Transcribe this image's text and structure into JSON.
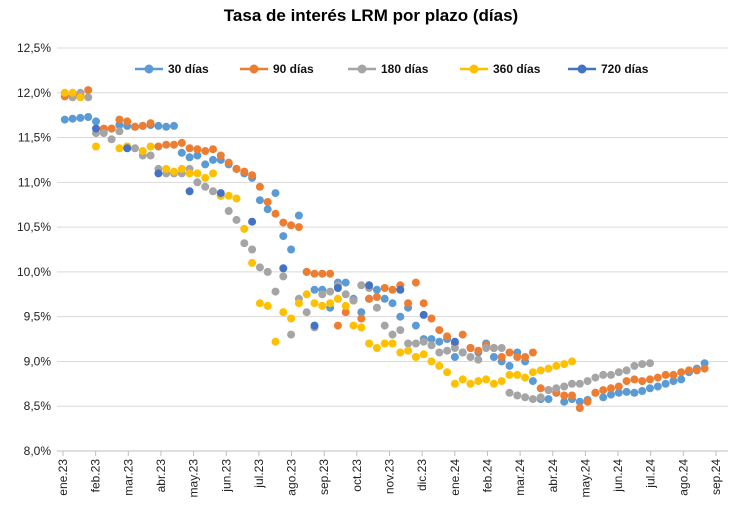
{
  "chart_data": {
    "type": "scatter",
    "title": "Tasa de interés LRM por plazo (días)",
    "xlabel": "",
    "ylabel": "",
    "ylim": [
      8.0,
      12.5
    ],
    "y_ticks": [
      "8,0%",
      "8,5%",
      "9,0%",
      "9,5%",
      "10,0%",
      "10,5%",
      "11,0%",
      "11,5%",
      "12,0%",
      "12,5%"
    ],
    "x_ticks": [
      "ene.23",
      "feb.23",
      "mar.23",
      "abr.23",
      "may.23",
      "jun.23",
      "jul.23",
      "ago.23",
      "sep.23",
      "oct.23",
      "nov.23",
      "dic.23",
      "ene.24",
      "feb.24",
      "mar.24",
      "abr.24",
      "may.24",
      "jun.24",
      "jul.24",
      "ago.24",
      "sep.24"
    ],
    "x_unit": "weeks since ene.23",
    "grid": "horizontal",
    "legend_position": "top",
    "series": [
      {
        "name": "30 días",
        "color": "#5B9BD5",
        "points": [
          [
            0,
            11.7
          ],
          [
            1,
            11.71
          ],
          [
            2,
            11.72
          ],
          [
            3,
            11.73
          ],
          [
            4,
            11.68
          ],
          [
            5,
            11.58
          ],
          [
            6,
            11.6
          ],
          [
            7,
            11.64
          ],
          [
            8,
            11.63
          ],
          [
            9,
            11.62
          ],
          [
            10,
            11.63
          ],
          [
            11,
            11.64
          ],
          [
            12,
            11.63
          ],
          [
            13,
            11.62
          ],
          [
            14,
            11.63
          ],
          [
            15,
            11.33
          ],
          [
            16,
            11.28
          ],
          [
            17,
            11.3
          ],
          [
            18,
            11.2
          ],
          [
            19,
            11.25
          ],
          [
            20,
            11.25
          ],
          [
            21,
            11.2
          ],
          [
            22,
            11.15
          ],
          [
            23,
            11.1
          ],
          [
            24,
            11.05
          ],
          [
            25,
            10.8
          ],
          [
            26,
            10.7
          ],
          [
            27,
            10.88
          ],
          [
            28,
            10.4
          ],
          [
            29,
            10.25
          ],
          [
            30,
            10.63
          ],
          [
            31,
            10.0
          ],
          [
            32,
            9.8
          ],
          [
            33,
            9.8
          ],
          [
            34,
            9.6
          ],
          [
            35,
            9.88
          ],
          [
            36,
            9.88
          ],
          [
            37,
            9.7
          ],
          [
            38,
            9.55
          ],
          [
            39,
            9.7
          ],
          [
            40,
            9.8
          ],
          [
            41,
            9.7
          ],
          [
            42,
            9.65
          ],
          [
            43,
            9.5
          ],
          [
            44,
            9.6
          ],
          [
            45,
            9.4
          ],
          [
            46,
            9.25
          ],
          [
            47,
            9.25
          ],
          [
            48,
            9.22
          ],
          [
            49,
            9.25
          ],
          [
            50,
            9.05
          ],
          [
            51,
            9.1
          ],
          [
            52,
            9.15
          ],
          [
            53,
            9.1
          ],
          [
            54,
            9.2
          ],
          [
            55,
            9.05
          ],
          [
            56,
            9.0
          ],
          [
            57,
            8.95
          ],
          [
            58,
            9.1
          ],
          [
            59,
            9.0
          ],
          [
            60,
            8.78
          ],
          [
            61,
            8.58
          ],
          [
            62,
            8.58
          ],
          [
            63,
            8.65
          ],
          [
            64,
            8.55
          ],
          [
            65,
            8.58
          ],
          [
            66,
            8.55
          ],
          [
            67,
            8.57
          ],
          [
            68,
            8.65
          ],
          [
            69,
            8.6
          ],
          [
            70,
            8.63
          ],
          [
            71,
            8.65
          ],
          [
            72,
            8.66
          ],
          [
            73,
            8.65
          ],
          [
            74,
            8.67
          ],
          [
            75,
            8.7
          ],
          [
            76,
            8.72
          ],
          [
            77,
            8.75
          ],
          [
            78,
            8.78
          ],
          [
            79,
            8.8
          ],
          [
            80,
            8.88
          ],
          [
            81,
            8.92
          ],
          [
            82,
            8.98
          ]
        ]
      },
      {
        "name": "90 días",
        "color": "#ED7D31",
        "points": [
          [
            0,
            11.96
          ],
          [
            1,
            11.97
          ],
          [
            2,
            11.98
          ],
          [
            3,
            12.03
          ],
          [
            5,
            11.6
          ],
          [
            6,
            11.6
          ],
          [
            7,
            11.7
          ],
          [
            8,
            11.68
          ],
          [
            9,
            11.62
          ],
          [
            10,
            11.63
          ],
          [
            11,
            11.66
          ],
          [
            12,
            11.4
          ],
          [
            13,
            11.42
          ],
          [
            14,
            11.42
          ],
          [
            15,
            11.44
          ],
          [
            16,
            11.38
          ],
          [
            17,
            11.37
          ],
          [
            18,
            11.35
          ],
          [
            19,
            11.37
          ],
          [
            20,
            11.3
          ],
          [
            21,
            11.22
          ],
          [
            22,
            11.15
          ],
          [
            23,
            11.12
          ],
          [
            24,
            11.08
          ],
          [
            25,
            10.95
          ],
          [
            26,
            10.78
          ],
          [
            27,
            10.65
          ],
          [
            28,
            10.55
          ],
          [
            29,
            10.52
          ],
          [
            30,
            10.5
          ],
          [
            31,
            10.0
          ],
          [
            32,
            9.98
          ],
          [
            33,
            9.98
          ],
          [
            34,
            9.98
          ],
          [
            35,
            9.4
          ],
          [
            36,
            9.55
          ],
          [
            37,
            9.68
          ],
          [
            38,
            9.48
          ],
          [
            39,
            9.7
          ],
          [
            40,
            9.72
          ],
          [
            41,
            9.82
          ],
          [
            42,
            9.8
          ],
          [
            43,
            9.85
          ],
          [
            44,
            9.65
          ],
          [
            45,
            9.88
          ],
          [
            46,
            9.65
          ],
          [
            47,
            9.48
          ],
          [
            48,
            9.35
          ],
          [
            49,
            9.28
          ],
          [
            50,
            9.2
          ],
          [
            51,
            9.3
          ],
          [
            52,
            9.15
          ],
          [
            53,
            9.12
          ],
          [
            54,
            9.18
          ],
          [
            55,
            9.15
          ],
          [
            56,
            9.05
          ],
          [
            57,
            9.1
          ],
          [
            58,
            9.05
          ],
          [
            59,
            9.05
          ],
          [
            60,
            9.1
          ],
          [
            61,
            8.7
          ],
          [
            62,
            8.68
          ],
          [
            63,
            8.65
          ],
          [
            64,
            8.62
          ],
          [
            65,
            8.62
          ],
          [
            66,
            8.48
          ],
          [
            67,
            8.55
          ],
          [
            68,
            8.65
          ],
          [
            69,
            8.68
          ],
          [
            70,
            8.7
          ],
          [
            71,
            8.72
          ],
          [
            72,
            8.78
          ],
          [
            73,
            8.8
          ],
          [
            74,
            8.78
          ],
          [
            75,
            8.8
          ],
          [
            76,
            8.82
          ],
          [
            77,
            8.85
          ],
          [
            78,
            8.85
          ],
          [
            79,
            8.88
          ],
          [
            80,
            8.9
          ],
          [
            81,
            8.9
          ],
          [
            82,
            8.92
          ]
        ]
      },
      {
        "name": "180 días",
        "color": "#A5A5A5",
        "points": [
          [
            1,
            11.95
          ],
          [
            2,
            12.0
          ],
          [
            3,
            11.95
          ],
          [
            4,
            11.55
          ],
          [
            5,
            11.55
          ],
          [
            6,
            11.48
          ],
          [
            7,
            11.57
          ],
          [
            8,
            11.4
          ],
          [
            9,
            11.38
          ],
          [
            10,
            11.3
          ],
          [
            11,
            11.3
          ],
          [
            12,
            11.15
          ],
          [
            13,
            11.1
          ],
          [
            14,
            11.1
          ],
          [
            15,
            11.1
          ],
          [
            16,
            11.15
          ],
          [
            17,
            11.0
          ],
          [
            18,
            10.95
          ],
          [
            19,
            10.9
          ],
          [
            20,
            10.85
          ],
          [
            21,
            10.68
          ],
          [
            22,
            10.58
          ],
          [
            23,
            10.32
          ],
          [
            24,
            10.25
          ],
          [
            25,
            10.05
          ],
          [
            26,
            10.0
          ],
          [
            27,
            9.78
          ],
          [
            28,
            9.95
          ],
          [
            29,
            9.3
          ],
          [
            30,
            9.7
          ],
          [
            31,
            9.55
          ],
          [
            32,
            9.38
          ],
          [
            33,
            9.75
          ],
          [
            34,
            9.78
          ],
          [
            35,
            9.85
          ],
          [
            36,
            9.75
          ],
          [
            37,
            9.68
          ],
          [
            38,
            9.85
          ],
          [
            39,
            9.82
          ],
          [
            40,
            9.6
          ],
          [
            41,
            9.4
          ],
          [
            42,
            9.3
          ],
          [
            43,
            9.35
          ],
          [
            44,
            9.2
          ],
          [
            45,
            9.2
          ],
          [
            46,
            9.22
          ],
          [
            47,
            9.18
          ],
          [
            48,
            9.1
          ],
          [
            49,
            9.12
          ],
          [
            50,
            9.15
          ],
          [
            51,
            9.1
          ],
          [
            52,
            9.05
          ],
          [
            53,
            9.02
          ],
          [
            54,
            9.15
          ],
          [
            55,
            9.15
          ],
          [
            56,
            9.15
          ],
          [
            57,
            8.65
          ],
          [
            58,
            8.62
          ],
          [
            59,
            8.6
          ],
          [
            60,
            8.58
          ],
          [
            61,
            8.6
          ],
          [
            62,
            8.68
          ],
          [
            63,
            8.7
          ],
          [
            64,
            8.72
          ],
          [
            65,
            8.75
          ],
          [
            66,
            8.75
          ],
          [
            67,
            8.78
          ],
          [
            68,
            8.82
          ],
          [
            69,
            8.85
          ],
          [
            70,
            8.85
          ],
          [
            71,
            8.88
          ],
          [
            72,
            8.9
          ],
          [
            73,
            8.95
          ],
          [
            74,
            8.97
          ],
          [
            75,
            8.98
          ]
        ]
      },
      {
        "name": "360 días",
        "color": "#FFC000",
        "points": [
          [
            0,
            12.0
          ],
          [
            1,
            12.0
          ],
          [
            2,
            11.95
          ],
          [
            4,
            11.4
          ],
          [
            7,
            11.38
          ],
          [
            8,
            11.4
          ],
          [
            10,
            11.35
          ],
          [
            11,
            11.4
          ],
          [
            13,
            11.15
          ],
          [
            14,
            11.12
          ],
          [
            15,
            11.15
          ],
          [
            16,
            11.1
          ],
          [
            17,
            11.1
          ],
          [
            18,
            11.05
          ],
          [
            19,
            11.1
          ],
          [
            20,
            10.85
          ],
          [
            21,
            10.85
          ],
          [
            22,
            10.82
          ],
          [
            23,
            10.48
          ],
          [
            24,
            10.1
          ],
          [
            25,
            9.65
          ],
          [
            26,
            9.62
          ],
          [
            27,
            9.22
          ],
          [
            28,
            9.55
          ],
          [
            29,
            9.48
          ],
          [
            30,
            9.65
          ],
          [
            31,
            9.75
          ],
          [
            32,
            9.65
          ],
          [
            33,
            9.62
          ],
          [
            34,
            9.65
          ],
          [
            35,
            9.7
          ],
          [
            36,
            9.62
          ],
          [
            37,
            9.4
          ],
          [
            38,
            9.38
          ],
          [
            39,
            9.2
          ],
          [
            40,
            9.15
          ],
          [
            41,
            9.2
          ],
          [
            42,
            9.2
          ],
          [
            43,
            9.1
          ],
          [
            44,
            9.12
          ],
          [
            45,
            9.05
          ],
          [
            46,
            9.08
          ],
          [
            47,
            9.0
          ],
          [
            48,
            8.95
          ],
          [
            49,
            8.88
          ],
          [
            50,
            8.75
          ],
          [
            51,
            8.8
          ],
          [
            52,
            8.75
          ],
          [
            53,
            8.78
          ],
          [
            54,
            8.8
          ],
          [
            55,
            8.75
          ],
          [
            56,
            8.78
          ],
          [
            57,
            8.85
          ],
          [
            58,
            8.85
          ],
          [
            59,
            8.82
          ],
          [
            60,
            8.88
          ],
          [
            61,
            8.9
          ],
          [
            62,
            8.92
          ],
          [
            63,
            8.95
          ],
          [
            64,
            8.97
          ],
          [
            65,
            9.0
          ]
        ]
      },
      {
        "name": "720 días",
        "color": "#4472C4",
        "points": [
          [
            4,
            11.6
          ],
          [
            8,
            11.38
          ],
          [
            12,
            11.1
          ],
          [
            16,
            10.9
          ],
          [
            20,
            10.88
          ],
          [
            24,
            10.56
          ],
          [
            28,
            10.04
          ],
          [
            32,
            9.4
          ],
          [
            35,
            9.82
          ],
          [
            39,
            9.85
          ],
          [
            43,
            9.8
          ],
          [
            46,
            9.52
          ],
          [
            50,
            9.22
          ]
        ]
      }
    ]
  }
}
